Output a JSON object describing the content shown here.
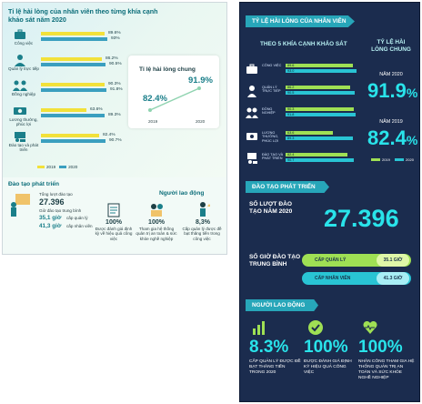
{
  "left": {
    "title": "Tỉ lệ hài lòng của nhân viên theo từng khía cạnh khảo sát năm 2020",
    "categories": [
      {
        "label": "Công việc",
        "icon": "briefcase-icon",
        "v2019": "89.6%",
        "v2020": "93%"
      },
      {
        "label": "Quản lý trực tiếp",
        "icon": "manager-icon",
        "v2019": "86.2%",
        "v2020": "90.5%"
      },
      {
        "label": "Đồng nghiệp",
        "icon": "coworkers-icon",
        "v2019": "90.3%",
        "v2020": "91.8%"
      },
      {
        "label": "Lương thưởng, phúc lợi",
        "icon": "money-icon",
        "v2019": "63.6%",
        "v2020": "89.3%"
      },
      {
        "label": "Đào tạo và phát triển",
        "icon": "training-icon",
        "v2019": "82.4%",
        "v2020": "90.7%"
      }
    ],
    "legend": {
      "y2019": "2019",
      "y2020": "2020"
    },
    "overall": {
      "title": "Tỉ lệ hài lòng chung",
      "v2019": "82.4%",
      "v2020": "91.9%",
      "y2019": "2019",
      "y2020": "2020"
    },
    "development": {
      "title": "Đào tạo phát triển",
      "count_label": "Tổng lượt đào tạo",
      "count_value": "27.396",
      "avg_label": "Giờ đào tạo trung bình",
      "mgr_hours": "35,1 giờ",
      "mgr_label": "cấp quản lý",
      "staff_hours": "41,3 giờ",
      "staff_label": "cấp nhân viên"
    },
    "employee": {
      "title": "Người lao động",
      "items": [
        {
          "pct": "100%",
          "text": "Được đánh giá định kỳ về hiệu quả công việc",
          "icon": "checklist-icon"
        },
        {
          "pct": "100%",
          "text": "Tham gia hệ thống quản trị an toàn & sức khỏe nghề nghiệp",
          "icon": "safety-icon"
        },
        {
          "pct": "8,3%",
          "text": "Cấp quản lý được đề bạt thăng tiến trong công việc",
          "icon": "promotion-icon"
        }
      ]
    }
  },
  "right": {
    "banner1": "TỶ LỆ HÀI LÒNG CỦA NHÂN VIÊN",
    "subtitle": "THEO 5 KHÍA CẠNH KHẢO SÁT",
    "overall_title": "TỶ LỆ HÀI LÒNG CHUNG",
    "year2020_label": "NĂM 2020",
    "overall_2020": "91.9",
    "year2019_label": "NĂM 2019",
    "overall_2019": "82.4",
    "pct_sign": "%",
    "categories": [
      {
        "label": "CÔNG VIỆC",
        "icon": "briefcase-icon",
        "v2019": "89.6",
        "v2020": "93.0"
      },
      {
        "label": "QUẢN LÝ TRỰC TIẾP",
        "icon": "manager-icon",
        "v2019": "86.2",
        "v2020": "90.5"
      },
      {
        "label": "ĐỒNG NGHIỆP",
        "icon": "coworkers-icon",
        "v2019": "90.3",
        "v2020": "91.8"
      },
      {
        "label": "LƯƠNG THƯỞNG, PHÚC LỢI",
        "icon": "money-icon",
        "v2019": "63.6",
        "v2020": "89.3"
      },
      {
        "label": "ĐÀO TẠO VÀ PHÁT TRIỂN",
        "icon": "training-icon",
        "v2019": "82.4",
        "v2020": "90.7"
      }
    ],
    "legend": {
      "y2019": "2019",
      "y2020": "2020"
    },
    "banner2": "ĐÀO TẠO PHÁT TRIỂN",
    "count_label": "SỐ LƯỢT ĐÀO TẠO NĂM 2020",
    "count_value": "27.396",
    "hours_label": "SỐ GIỜ ĐÀO TẠO TRUNG BÌNH",
    "mgr_label": "CẤP QUẢN LÝ",
    "mgr_value": "35.1 GIỜ",
    "staff_label": "CẤP NHÂN VIÊN",
    "staff_value": "41.3 GIỜ",
    "banner3": "NGƯỜI LAO ĐỘNG",
    "employee": [
      {
        "pct": "8.3%",
        "text": "CẤP QUẢN LÝ ĐƯỢC ĐỀ BẠT THĂNG TIẾN TRONG 2020",
        "icon": "growth-chart-icon"
      },
      {
        "pct": "100%",
        "text": "ĐƯỢC ĐÁNH GIÁ ĐỊNH KỲ HIỆU QUẢ CÔNG VIỆC",
        "icon": "check-circle-icon"
      },
      {
        "pct": "100%",
        "text": "NHÂN CÔNG THAM GIA HỆ THỐNG QUẢN TRỊ AN TOÀN VÀ SỨC KHỎE NGHỀ NGHIỆP",
        "icon": "heart-pulse-icon"
      }
    ]
  },
  "colors": {
    "bar2019": "#f2e13a",
    "bar2020": "#3a9fbf",
    "rbar2019": "#9fe054",
    "rbar2020": "#29c4d4",
    "accent": "#29e3ea",
    "navy": "#1b2c4e"
  }
}
